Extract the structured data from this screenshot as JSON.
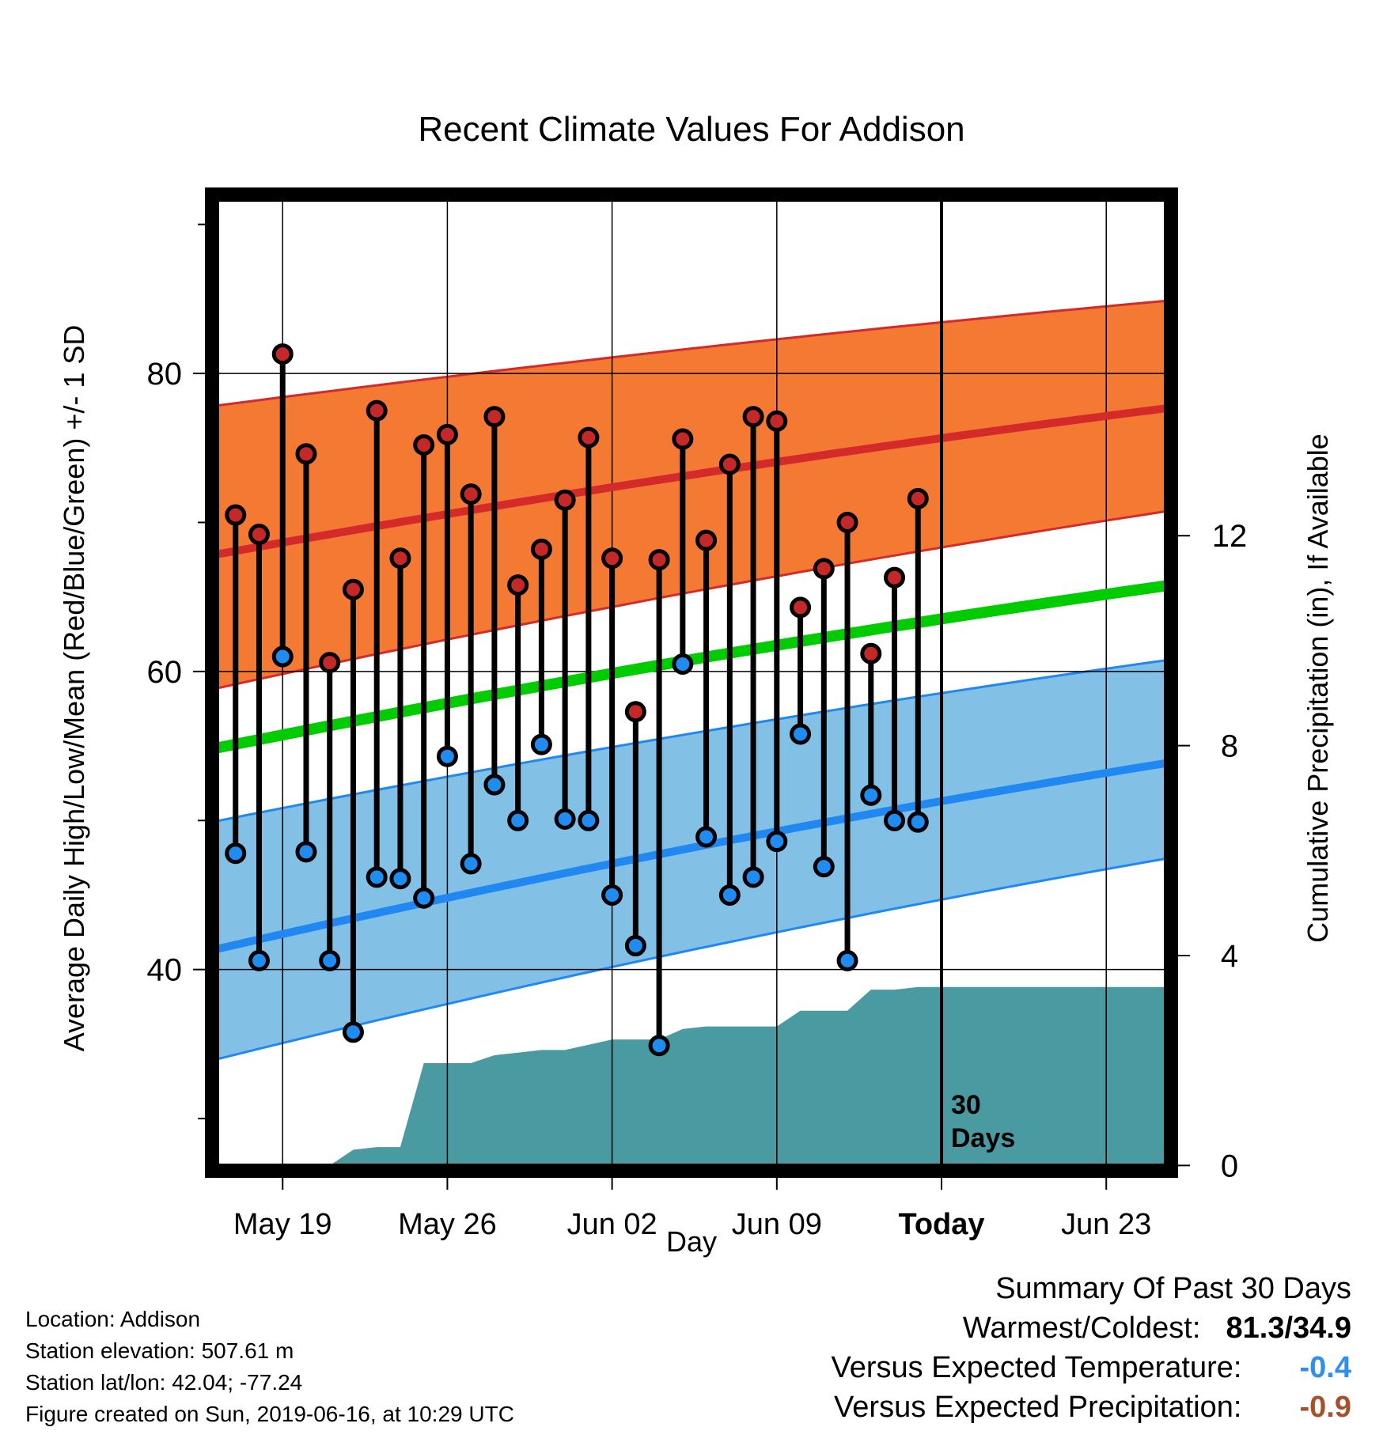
{
  "chart_data": {
    "type": "line",
    "title": "Recent Climate Values For Addison",
    "xlabel": "Day",
    "ylabel": "Average Daily High/Low/Mean (Red/Blue/Green) +/- 1 SD",
    "y2label": "Cumulative Precipitation (in), If Available",
    "x_start": "May 16",
    "x_ticks": [
      {
        "day": 3,
        "label": "May 19"
      },
      {
        "day": 10,
        "label": "May 26"
      },
      {
        "day": 17,
        "label": "Jun 02"
      },
      {
        "day": 24,
        "label": "Jun 09"
      },
      {
        "day": 31,
        "label": "Today"
      },
      {
        "day": 38,
        "label": "Jun 23"
      }
    ],
    "xlim": [
      0,
      40.75
    ],
    "ylim": [
      26.5,
      92
    ],
    "y_ticks": [
      40,
      60,
      80
    ],
    "y_minor_ticks": [
      30,
      50,
      70,
      90
    ],
    "y2lim": [
      -0.1,
      18.5
    ],
    "y2_ticks": [
      0,
      4,
      8,
      12
    ],
    "days": [
      1,
      2,
      3,
      4,
      5,
      6,
      7,
      8,
      9,
      10,
      11,
      12,
      13,
      14,
      15,
      16,
      17,
      18,
      19,
      20,
      21,
      22,
      23,
      24,
      25,
      26,
      27,
      28,
      29,
      30
    ],
    "high": [
      70.5,
      69.2,
      81.3,
      74.6,
      60.6,
      65.5,
      77.5,
      67.6,
      75.2,
      75.9,
      71.9,
      77.1,
      65.8,
      68.2,
      71.5,
      75.7,
      67.6,
      57.3,
      67.5,
      75.6,
      68.8,
      73.9,
      77.1,
      76.8,
      64.3,
      66.9,
      70.0,
      61.2,
      66.3,
      71.6
    ],
    "low": [
      47.8,
      40.6,
      61.0,
      47.9,
      40.6,
      35.8,
      46.2,
      46.1,
      44.8,
      54.3,
      47.1,
      52.4,
      50.0,
      55.1,
      50.1,
      50.0,
      45.0,
      41.6,
      34.9,
      60.5,
      48.9,
      45.0,
      46.2,
      48.6,
      55.8,
      46.9,
      40.6,
      51.7,
      50.0,
      49.9
    ],
    "normal_high": {
      "start": 67.8,
      "end": 77.7
    },
    "normal_high_band": {
      "upper_start": 77.8,
      "upper_end": 84.9,
      "lower_start": 58.8,
      "lower_end": 70.8
    },
    "normal_mean": {
      "start": 54.8,
      "end": 65.8
    },
    "normal_low": {
      "start": 41.3,
      "end": 53.9
    },
    "normal_low_band": {
      "upper_start": 49.9,
      "upper_end": 60.8,
      "lower_start": 33.9,
      "lower_end": 47.5
    },
    "precip_cumulative": [
      [
        0,
        0
      ],
      [
        5,
        0
      ],
      [
        6,
        0.3
      ],
      [
        7,
        0.35
      ],
      [
        8,
        0.35
      ],
      [
        9,
        1.95
      ],
      [
        10,
        1.95
      ],
      [
        11,
        1.95
      ],
      [
        12,
        2.1
      ],
      [
        13,
        2.15
      ],
      [
        14,
        2.2
      ],
      [
        15,
        2.2
      ],
      [
        16,
        2.3
      ],
      [
        17,
        2.4
      ],
      [
        18,
        2.4
      ],
      [
        19,
        2.4
      ],
      [
        20,
        2.6
      ],
      [
        21,
        2.65
      ],
      [
        22,
        2.65
      ],
      [
        23,
        2.65
      ],
      [
        24,
        2.65
      ],
      [
        25,
        2.95
      ],
      [
        26,
        2.95
      ],
      [
        27,
        2.95
      ],
      [
        28,
        3.35
      ],
      [
        29,
        3.35
      ],
      [
        30,
        3.4
      ],
      [
        40.75,
        3.4
      ]
    ],
    "annotation": "30 Days",
    "colors": {
      "high_band": "#f47a33",
      "high_line": "#d42a2a",
      "mean_line": "#00cc00",
      "low_band": "#82c0e6",
      "low_line": "#2188f2",
      "precip": "#4a9aa1",
      "high_dot": "#c42828",
      "low_dot": "#1e8cf0"
    }
  },
  "info": {
    "location": "Location: Addison",
    "elevation": "Station elevation: 507.61 m",
    "latlon": "Station lat/lon: 42.04; -77.24",
    "created": "Figure created on Sun, 2019-06-16, at 10:29 UTC"
  },
  "summary": {
    "title": "Summary Of Past 30 Days",
    "warmest_label": "Warmest/Coldest:",
    "warmest_value": "81.3/34.9",
    "temp_label": "Versus Expected Temperature:",
    "temp_value": "-0.4",
    "temp_color": "#2e8fef",
    "precip_label": "Versus Expected Precipitation:",
    "precip_value": "-0.9",
    "precip_color": "#a5522c"
  }
}
